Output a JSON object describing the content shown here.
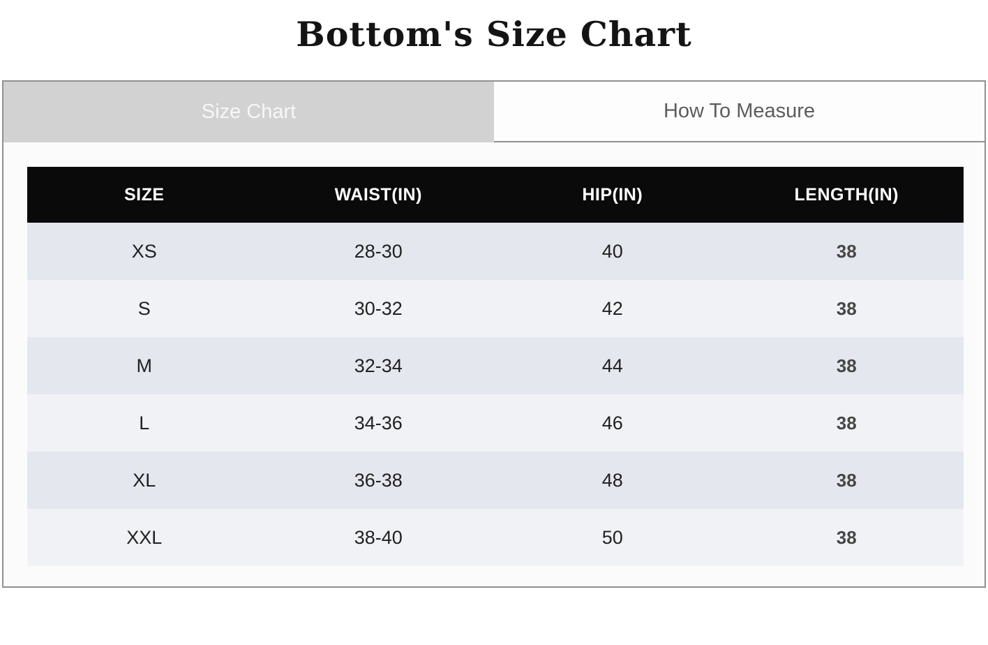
{
  "page": {
    "title": "Bottom's Size Chart"
  },
  "tabs": {
    "size_chart": {
      "label": "Size Chart",
      "active": true
    },
    "how_to_measure": {
      "label": "How To Measure",
      "active": false
    }
  },
  "table": {
    "columns": [
      "SIZE",
      "WAIST(IN)",
      "HIP(IN)",
      "LENGTH(IN)"
    ],
    "rows": [
      {
        "size": "XS",
        "waist": "28-30",
        "hip": "40",
        "length": "38"
      },
      {
        "size": "S",
        "waist": "30-32",
        "hip": "42",
        "length": "38"
      },
      {
        "size": "M",
        "waist": "32-34",
        "hip": "44",
        "length": "38"
      },
      {
        "size": "L",
        "waist": "34-36",
        "hip": "46",
        "length": "38"
      },
      {
        "size": "XL",
        "waist": "36-38",
        "hip": "48",
        "length": "38"
      },
      {
        "size": "XXL",
        "waist": "38-40",
        "hip": "50",
        "length": "38"
      }
    ]
  },
  "colors": {
    "header_bg": "#0a0a0a",
    "header_text": "#ffffff",
    "row_odd_bg": "#e4e7ed",
    "row_even_bg": "#f0f2f5",
    "tab_active_bg": "#d2d2d2",
    "tab_active_text": "#f7f7f7",
    "tab_inactive_bg": "#fdfdfd",
    "tab_inactive_text": "#5c5c5c",
    "panel_border": "#8f8f8f"
  }
}
